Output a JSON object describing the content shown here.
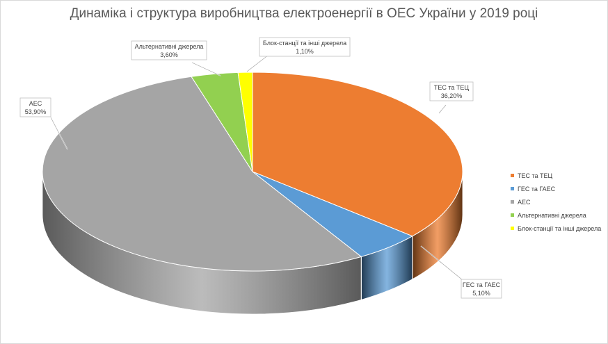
{
  "chart_data": {
    "type": "pie",
    "title": "Динаміка і структура виробництва електроенергії в ОЕС України у 2019 році",
    "categories": [
      "ТЕС та ТЕЦ",
      "ГЕС та ГАЕС",
      "АЕС",
      "Альтернативні джерела",
      "Блок-станції та інші джерела"
    ],
    "values": [
      36.2,
      5.1,
      53.9,
      3.6,
      1.1
    ],
    "value_labels": [
      "36,20%",
      "5,10%",
      "53,90%",
      "3,60%",
      "1,10%"
    ],
    "colors": [
      "#ED7D31",
      "#5B9BD5",
      "#A5A5A5",
      "#92D050",
      "#FFFF00"
    ],
    "side_colors": [
      "#5E3212",
      "#203A52",
      "#5A5A5A",
      "#4A6A28",
      "#808000"
    ],
    "legend_position": "right",
    "style": "3d"
  }
}
